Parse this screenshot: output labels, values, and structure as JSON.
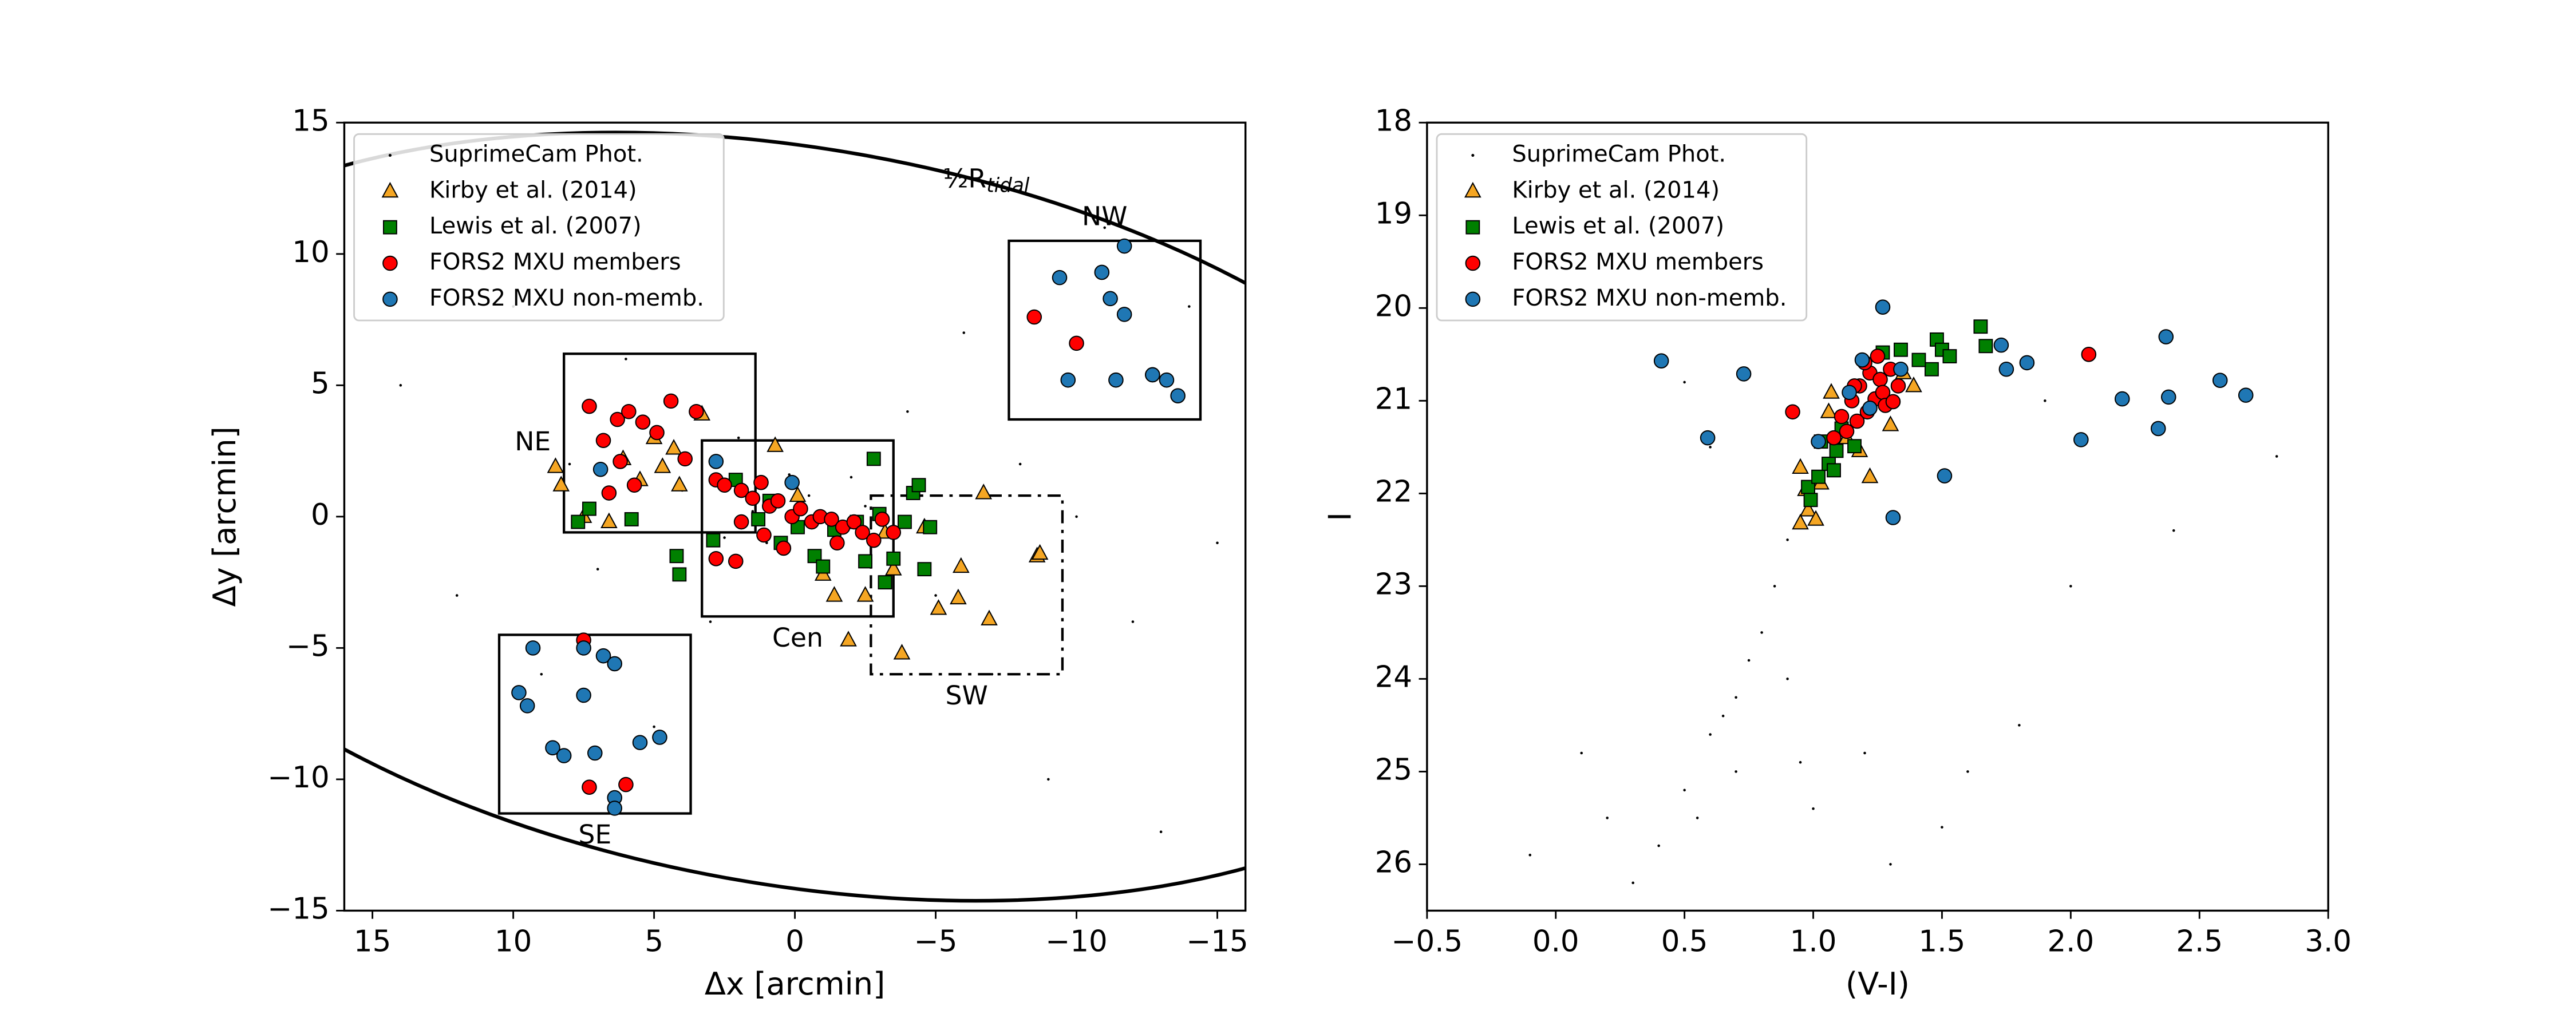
{
  "chart_data": [
    {
      "type": "scatter",
      "xlabel": "Δx [arcmin]",
      "ylabel": "Δy [arcmin]",
      "xlim": [
        16,
        -16
      ],
      "ylim": [
        -15,
        15
      ],
      "xticks": [
        15,
        10,
        5,
        0,
        {
          "value": -5,
          "label": "−5"
        },
        {
          "value": -10,
          "label": "−10"
        },
        {
          "value": -15,
          "label": "−15"
        }
      ],
      "yticks": [
        {
          "value": -15,
          "label": "−15"
        },
        {
          "value": -10,
          "label": "−10"
        },
        {
          "value": -5,
          "label": "−5"
        },
        0,
        5,
        10,
        15
      ],
      "legend": "upper left",
      "tidal_label": "½R",
      "tidal_label_subscript": "tidal",
      "regions": [
        {
          "label": "NE",
          "x": [
            8.2,
            1.4
          ],
          "y": [
            -0.6,
            6.2
          ],
          "label_side": "left",
          "dashed": false
        },
        {
          "label": "NW",
          "x": [
            -7.6,
            -14.4
          ],
          "y": [
            3.7,
            10.5
          ],
          "label_side": "top",
          "dashed": false
        },
        {
          "label": "Cen",
          "x": [
            3.3,
            -3.5
          ],
          "y": [
            -3.8,
            2.9
          ],
          "label_side": "bottom",
          "dashed": false
        },
        {
          "label": "SW",
          "x": [
            -2.7,
            -9.5
          ],
          "y": [
            -6.0,
            0.8
          ],
          "label_side": "bottom",
          "dashed": true
        },
        {
          "label": "SE",
          "x": [
            10.5,
            3.7
          ],
          "y": [
            -11.3,
            -4.5
          ],
          "label_side": "bottom",
          "dashed": false
        }
      ],
      "series": [
        {
          "name": "SuprimeCam Phot.",
          "color": "#000000",
          "marker": "dot",
          "x": [
            14,
            12,
            10,
            9,
            8,
            7,
            6,
            5,
            4,
            3,
            2,
            1,
            0.5,
            0,
            -0.5,
            -1,
            -2,
            -3,
            -4,
            -5,
            -6,
            -7,
            -8,
            -9,
            -10,
            -11,
            -12,
            -13,
            -14,
            -15,
            1.5,
            -1.5,
            2.5,
            -2.5,
            0.2
          ],
          "y": [
            5,
            -3,
            8,
            -6,
            2,
            -2,
            6,
            -8,
            1,
            -4,
            3,
            -1,
            0.5,
            -0.3,
            0.8,
            -2,
            1.5,
            -1,
            4,
            -3,
            7,
            -6,
            2,
            -10,
            0,
            11,
            -4,
            -12,
            8,
            -1,
            0.2,
            -0.6,
            -0.8,
            0.4,
            1.6
          ]
        },
        {
          "name": "Kirby et al. (2014)",
          "color": "#f5a623",
          "marker": "triangle",
          "x": [
            8.5,
            8.3,
            7.5,
            6.6,
            6.1,
            5.5,
            5.0,
            4.7,
            4.3,
            4.1,
            3.3,
            0.7,
            -0.1,
            -1.0,
            -1.4,
            -1.9,
            -3.2,
            -3.8,
            -4.6,
            -5.1,
            -5.9,
            -6.7,
            -5.8,
            -6.9,
            -8.6,
            -8.7,
            -2.5,
            -3.5
          ],
          "y": [
            1.9,
            1.2,
            0.0,
            -0.2,
            2.2,
            1.4,
            3.0,
            1.9,
            2.6,
            1.2,
            3.9,
            2.7,
            0.8,
            -2.2,
            -3.0,
            -4.7,
            -0.6,
            -5.2,
            -0.4,
            -3.5,
            -1.9,
            0.9,
            -3.1,
            -3.9,
            -1.5,
            -1.4,
            -3.0,
            -2.0
          ]
        },
        {
          "name": "Lewis et al. (2007)",
          "color": "#008000",
          "marker": "square",
          "x": [
            7.7,
            7.3,
            5.8,
            4.2,
            4.1,
            2.9,
            2.1,
            1.3,
            0.9,
            0.5,
            -0.1,
            -0.7,
            -1.0,
            -1.4,
            -2.2,
            -2.5,
            -3.0,
            -3.2,
            -3.5,
            -3.9,
            -4.2,
            -4.4,
            -4.6,
            -4.8,
            -2.8
          ],
          "y": [
            -0.2,
            0.3,
            -0.1,
            -1.5,
            -2.2,
            -0.9,
            1.4,
            -0.1,
            0.6,
            -1.0,
            -0.4,
            -1.5,
            -1.9,
            -0.5,
            -0.2,
            -1.7,
            0.1,
            -2.5,
            -1.6,
            -0.2,
            0.9,
            1.2,
            -2.0,
            -0.4,
            2.2
          ]
        },
        {
          "name": "FORS2 MXU members",
          "color": "#ff0000",
          "marker": "circle",
          "x": [
            7.3,
            6.3,
            5.9,
            5.4,
            4.9,
            4.4,
            3.5,
            6.8,
            6.2,
            3.9,
            6.6,
            5.7,
            -8.5,
            -10.0,
            -12.7,
            7.5,
            7.3,
            6.0,
            2.8,
            2.8,
            2.5,
            1.9,
            1.5,
            1.2,
            0.9,
            0.6,
            0.1,
            -0.2,
            -0.6,
            -0.9,
            -1.3,
            -1.7,
            -2.1,
            -2.4,
            -2.8,
            -3.1,
            -3.5,
            1.1,
            1.9,
            0.4,
            -1.5,
            2.1
          ],
          "y": [
            4.2,
            3.7,
            4.0,
            3.6,
            3.2,
            4.4,
            4.0,
            2.9,
            2.1,
            2.2,
            0.9,
            1.2,
            7.6,
            6.6,
            5.4,
            -4.7,
            -10.3,
            -10.2,
            1.4,
            -1.6,
            1.2,
            1.0,
            0.7,
            1.3,
            0.4,
            0.6,
            0.0,
            0.3,
            -0.2,
            0.0,
            -0.1,
            -0.4,
            -0.2,
            -0.6,
            -0.9,
            -0.1,
            -0.6,
            -0.7,
            -0.2,
            -1.2,
            -1.0,
            -1.7
          ]
        },
        {
          "name": "FORS2 MXU non-memb.",
          "color": "#1f77b4",
          "marker": "circle",
          "x": [
            -9.4,
            -10.9,
            -11.7,
            -11.2,
            -11.7,
            -9.7,
            -11.4,
            -12.7,
            -13.2,
            -13.6,
            6.9,
            2.8,
            9.3,
            7.5,
            9.8,
            9.5,
            7.5,
            6.8,
            6.4,
            8.6,
            8.2,
            7.1,
            5.5,
            4.8,
            6.4,
            6.4,
            0.1
          ],
          "y": [
            9.1,
            9.3,
            10.3,
            8.3,
            7.7,
            5.2,
            5.2,
            5.4,
            5.2,
            4.6,
            1.8,
            2.1,
            -5.0,
            -5.0,
            -6.7,
            -7.2,
            -6.8,
            -5.3,
            -5.6,
            -8.8,
            -9.1,
            -9.0,
            -8.6,
            -8.4,
            -10.7,
            -11.1,
            1.3
          ]
        }
      ]
    },
    {
      "type": "scatter",
      "xlabel": "(V-I)",
      "ylabel": "I",
      "xlim": [
        -0.5,
        3.0
      ],
      "ylim": [
        26.5,
        18
      ],
      "xticks": [
        {
          "value": -0.5,
          "label": "−0.5"
        },
        {
          "value": 0,
          "label": "0.0"
        },
        0.5,
        {
          "value": 1,
          "label": "1.0"
        },
        1.5,
        {
          "value": 2,
          "label": "2.0"
        },
        2.5,
        {
          "value": 3,
          "label": "3.0"
        }
      ],
      "yticks": [
        18,
        19,
        20,
        21,
        22,
        23,
        24,
        25,
        26
      ],
      "legend": "upper left",
      "series": [
        {
          "name": "SuprimeCam Phot.",
          "color": "#000000",
          "marker": "dot",
          "x": [
            0.6,
            0.7,
            0.8,
            0.85,
            0.9,
            0.5,
            0.4,
            0.3,
            0.7,
            1.0,
            1.2,
            1.5,
            0.2,
            0.9,
            1.1,
            0.75,
            1.8,
            2.0,
            2.4,
            0.1,
            -0.1,
            0.6,
            0.5,
            1.6,
            1.3,
            0.95,
            0.65,
            2.8,
            1.9,
            0.55
          ],
          "y": [
            24.6,
            24.2,
            23.5,
            23.0,
            22.5,
            25.2,
            25.8,
            26.2,
            25.0,
            25.4,
            24.8,
            25.6,
            25.5,
            24.0,
            21.8,
            23.8,
            24.5,
            23.0,
            22.4,
            24.8,
            25.9,
            21.5,
            20.8,
            25.0,
            26.0,
            24.9,
            24.4,
            21.6,
            21.0,
            25.5
          ]
        },
        {
          "name": "Kirby et al. (2014)",
          "color": "#f5a623",
          "marker": "triangle",
          "x": [
            0.95,
            0.97,
            0.98,
            1.01,
            1.03,
            1.07,
            1.13,
            1.18,
            1.22,
            1.3,
            1.35,
            1.39,
            1.06,
            0.95
          ],
          "y": [
            21.72,
            21.96,
            22.18,
            22.28,
            21.89,
            20.91,
            21.4,
            21.54,
            21.82,
            21.26,
            20.7,
            20.84,
            21.12,
            22.32
          ]
        },
        {
          "name": "Lewis et al. (2007)",
          "color": "#008000",
          "marker": "square",
          "x": [
            1.65,
            1.67,
            1.48,
            1.5,
            1.53,
            1.46,
            1.41,
            1.27,
            1.34,
            0.98,
            1.02,
            1.06,
            1.09,
            1.03,
            1.11,
            1.08,
            1.16,
            0.99
          ],
          "y": [
            20.2,
            20.41,
            20.34,
            20.45,
            20.52,
            20.66,
            20.56,
            20.48,
            20.45,
            21.93,
            21.82,
            21.68,
            21.54,
            21.44,
            21.3,
            21.75,
            21.49,
            22.07
          ]
        },
        {
          "name": "FORS2 MXU members",
          "color": "#ff0000",
          "marker": "circle",
          "x": [
            0.92,
            2.07,
            1.11,
            1.15,
            1.18,
            1.22,
            1.26,
            1.3,
            1.24,
            1.27,
            1.17,
            1.21,
            1.13,
            1.33,
            1.2,
            1.28,
            1.08,
            1.25,
            1.16,
            1.31
          ],
          "y": [
            21.12,
            20.5,
            21.17,
            21.0,
            20.84,
            20.7,
            20.77,
            20.66,
            20.98,
            20.91,
            21.22,
            21.12,
            21.33,
            20.84,
            20.59,
            21.05,
            21.4,
            20.52,
            20.84,
            21.01
          ]
        },
        {
          "name": "FORS2 MXU non-memb.",
          "color": "#1f77b4",
          "marker": "circle",
          "x": [
            0.41,
            0.59,
            0.73,
            1.27,
            1.31,
            1.51,
            1.73,
            1.75,
            1.83,
            2.04,
            2.2,
            2.37,
            2.38,
            2.34,
            2.58,
            2.68,
            1.14,
            1.22,
            1.19,
            1.02,
            1.34
          ],
          "y": [
            20.57,
            21.4,
            20.71,
            19.99,
            22.26,
            21.81,
            20.4,
            20.66,
            20.59,
            21.42,
            20.98,
            20.31,
            20.96,
            21.3,
            20.78,
            20.94,
            20.91,
            21.08,
            20.56,
            21.44,
            20.66
          ]
        }
      ]
    }
  ]
}
